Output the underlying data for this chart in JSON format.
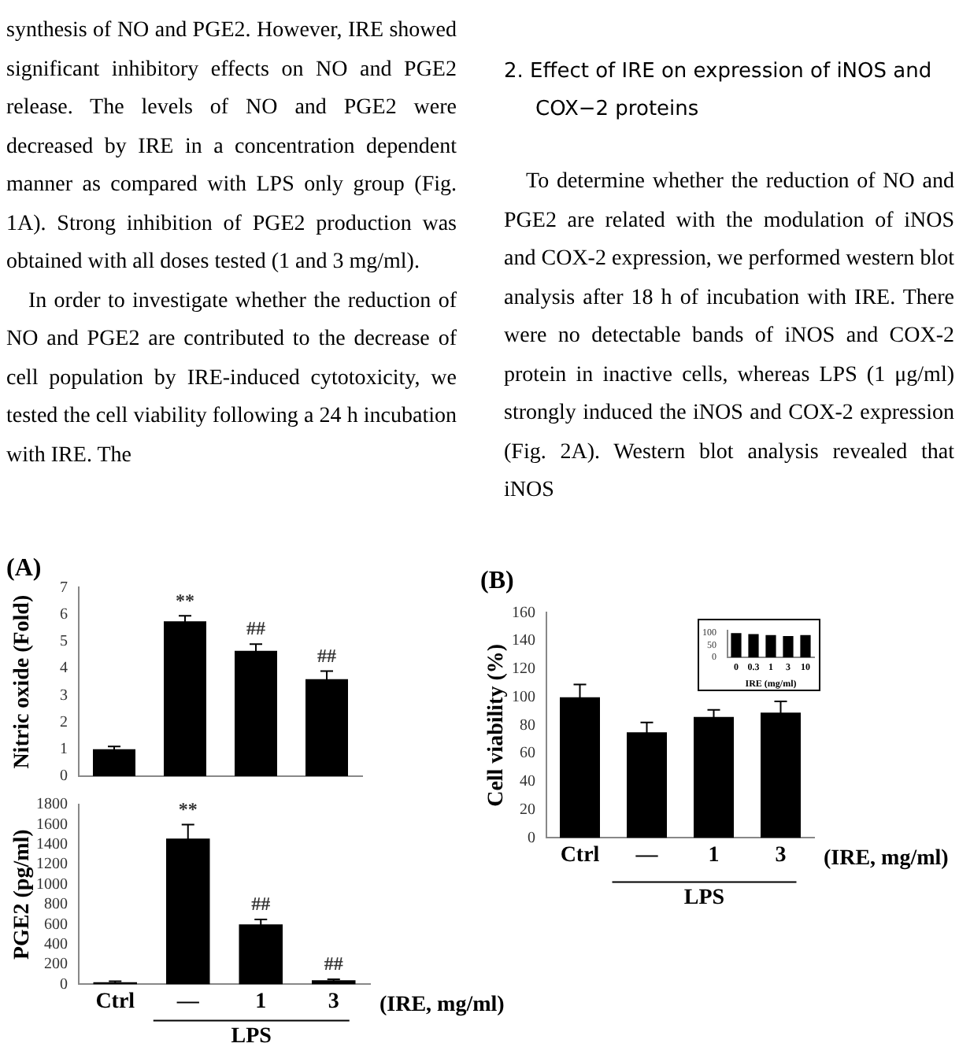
{
  "chart_data": [
    {
      "type": "other",
      "annotations": [
        "synthesis of NO and PGE2. However, IRE showed significant inhibitory effects on NO and PGE2 release. The levels of NO and PGE2 were decreased by IRE in a concentration dependent manner as compared with LPS only group (Fig. 1A). Strong inhibition of PGE2 production was obtained with all doses tested (1 and 3 mg/ml).",
        "In order to investigate whether the reduction of NO and PGE2 are contributed to the decrease of cell population by IRE-induced cytotoxicity, we tested the cell viability following a 24 h incubation with IRE. The",
        "2. Effect of IRE on expression of iNOS and COX−2 proteins",
        "To determine whether the reduction of NO and PGE2 are related with the modulation of iNOS and COX-2 expression, we performed western blot analysis after 18 h of incubation with IRE. There were no detectable bands of iNOS and COX-2 protein in inactive cells, whereas LPS (1 μg/ml) strongly induced the iNOS and COX-2 expression (Fig. 2A). Western blot analysis revealed that iNOS"
      ]
    },
    {
      "type": "bar",
      "title": "(A)",
      "ylabel": "Nitric oxide (Fold)",
      "categories": [
        "Ctrl",
        "—",
        "1",
        "3"
      ],
      "values": [
        1.0,
        5.75,
        4.65,
        3.6
      ],
      "errors": [
        0.1,
        0.2,
        0.25,
        0.3
      ],
      "color": "#000000",
      "ylim": [
        0,
        7
      ],
      "yticks": [
        0,
        1,
        2,
        3,
        4,
        5,
        6,
        7
      ],
      "tick_labels": "y",
      "annotations": [
        {
          "text": "**",
          "x": "—",
          "y": 5.75
        },
        {
          "text": "##",
          "x": "1",
          "y": 4.65
        },
        {
          "text": "##",
          "x": "3",
          "y": 3.6
        }
      ]
    },
    {
      "type": "bar",
      "ylabel": "PGE2 (pg/ml)",
      "xlabel": "(IRE, mg/ml)",
      "categories": [
        "Ctrl",
        "—",
        "1",
        "3"
      ],
      "values": [
        20,
        1460,
        600,
        40
      ],
      "errors": [
        10,
        140,
        50,
        10
      ],
      "color": "#000000",
      "ylim": [
        0,
        1800
      ],
      "yticks": [
        0,
        200,
        400,
        600,
        800,
        1000,
        1200,
        1400,
        1600,
        1800
      ],
      "annotations": [
        {
          "text": "**",
          "x": "—",
          "y": 1460
        },
        {
          "text": "##",
          "x": "1",
          "y": 600
        },
        {
          "text": "##",
          "x": "3",
          "y": 40
        },
        "LPS"
      ]
    },
    {
      "type": "bar",
      "title": "(B)",
      "ylabel": "Cell viability (%)",
      "xlabel": "(IRE, mg/ml)",
      "categories": [
        "Ctrl",
        "—",
        "1",
        "3"
      ],
      "values": [
        100,
        75,
        86,
        89
      ],
      "errors": [
        9,
        7,
        5,
        8
      ],
      "color": "#000000",
      "ylim": [
        0,
        160
      ],
      "yticks": [
        0,
        20,
        40,
        60,
        80,
        100,
        120,
        140,
        160
      ],
      "annotations": [
        "LPS"
      ]
    },
    {
      "type": "bar",
      "xlabel": "IRE (mg/ml)",
      "categories": [
        "0",
        "0.3",
        "1",
        "3",
        "10"
      ],
      "values": [
        100,
        96,
        92,
        88,
        92
      ],
      "color": "#000000",
      "ylim": [
        0,
        110
      ],
      "yticks": [
        0,
        50,
        100
      ]
    }
  ]
}
